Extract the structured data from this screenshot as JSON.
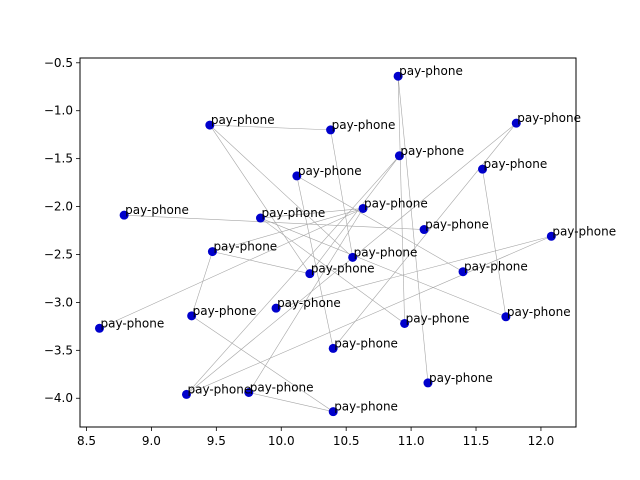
{
  "chart_data": {
    "type": "scatter",
    "title": "",
    "xlabel": "",
    "ylabel": "",
    "xlim": [
      8.45,
      12.27
    ],
    "ylim": [
      -4.3,
      -0.45
    ],
    "xticks": [
      8.5,
      9.0,
      9.5,
      10.0,
      10.5,
      11.0,
      11.5,
      12.0
    ],
    "xtick_labels": [
      "8.5",
      "9.0",
      "9.5",
      "10.0",
      "10.5",
      "11.0",
      "11.5",
      "12.0"
    ],
    "yticks": [
      -0.5,
      -1.0,
      -1.5,
      -2.0,
      -2.5,
      -3.0,
      -3.5,
      -4.0
    ],
    "ytick_labels": [
      "−0.5",
      "−1.0",
      "−1.5",
      "−2.0",
      "−2.5",
      "−3.0",
      "−3.5",
      "−4.0"
    ],
    "grid": false,
    "point_color": "#0000cc",
    "edge_color": "#a6a6a6",
    "points": [
      {
        "x": 10.9,
        "y": -0.64,
        "label": "pay-phone"
      },
      {
        "x": 11.81,
        "y": -1.13,
        "label": "pay-phone"
      },
      {
        "x": 9.45,
        "y": -1.15,
        "label": "pay-phone"
      },
      {
        "x": 10.38,
        "y": -1.2,
        "label": "pay-phone"
      },
      {
        "x": 10.91,
        "y": -1.47,
        "label": "pay-phone"
      },
      {
        "x": 11.55,
        "y": -1.61,
        "label": "pay-phone"
      },
      {
        "x": 10.12,
        "y": -1.68,
        "label": "pay-phone"
      },
      {
        "x": 10.63,
        "y": -2.02,
        "label": "pay-phone"
      },
      {
        "x": 8.79,
        "y": -2.09,
        "label": "pay-phone"
      },
      {
        "x": 9.84,
        "y": -2.12,
        "label": "pay-phone"
      },
      {
        "x": 11.1,
        "y": -2.24,
        "label": "pay-phone"
      },
      {
        "x": 12.08,
        "y": -2.31,
        "label": "pay-phone"
      },
      {
        "x": 9.47,
        "y": -2.47,
        "label": "pay-phone"
      },
      {
        "x": 10.55,
        "y": -2.53,
        "label": "pay-phone"
      },
      {
        "x": 10.22,
        "y": -2.7,
        "label": "pay-phone"
      },
      {
        "x": 11.4,
        "y": -2.68,
        "label": "pay-phone"
      },
      {
        "x": 9.96,
        "y": -3.06,
        "label": "pay-phone"
      },
      {
        "x": 9.31,
        "y": -3.14,
        "label": "pay-phone"
      },
      {
        "x": 11.73,
        "y": -3.15,
        "label": "pay-phone"
      },
      {
        "x": 8.6,
        "y": -3.27,
        "label": "pay-phone"
      },
      {
        "x": 10.95,
        "y": -3.22,
        "label": "pay-phone"
      },
      {
        "x": 10.4,
        "y": -3.48,
        "label": "pay-phone"
      },
      {
        "x": 11.13,
        "y": -3.84,
        "label": "pay-phone"
      },
      {
        "x": 9.27,
        "y": -3.96,
        "label": "pay-phone"
      },
      {
        "x": 9.75,
        "y": -3.94,
        "label": "pay-phone"
      },
      {
        "x": 10.4,
        "y": -4.14,
        "label": "pay-phone"
      }
    ],
    "edges": [
      [
        0,
        22
      ],
      [
        0,
        20
      ],
      [
        2,
        3
      ],
      [
        2,
        13
      ],
      [
        1,
        23
      ],
      [
        1,
        21
      ],
      [
        4,
        23
      ],
      [
        4,
        14
      ],
      [
        5,
        18
      ],
      [
        6,
        21
      ],
      [
        6,
        15
      ],
      [
        7,
        24
      ],
      [
        7,
        19
      ],
      [
        7,
        9
      ],
      [
        8,
        10
      ],
      [
        9,
        20
      ],
      [
        9,
        18
      ],
      [
        11,
        16
      ],
      [
        11,
        23
      ],
      [
        12,
        14
      ],
      [
        12,
        7
      ],
      [
        17,
        25
      ],
      [
        17,
        12
      ],
      [
        24,
        25
      ],
      [
        13,
        3
      ],
      [
        14,
        2
      ]
    ]
  }
}
